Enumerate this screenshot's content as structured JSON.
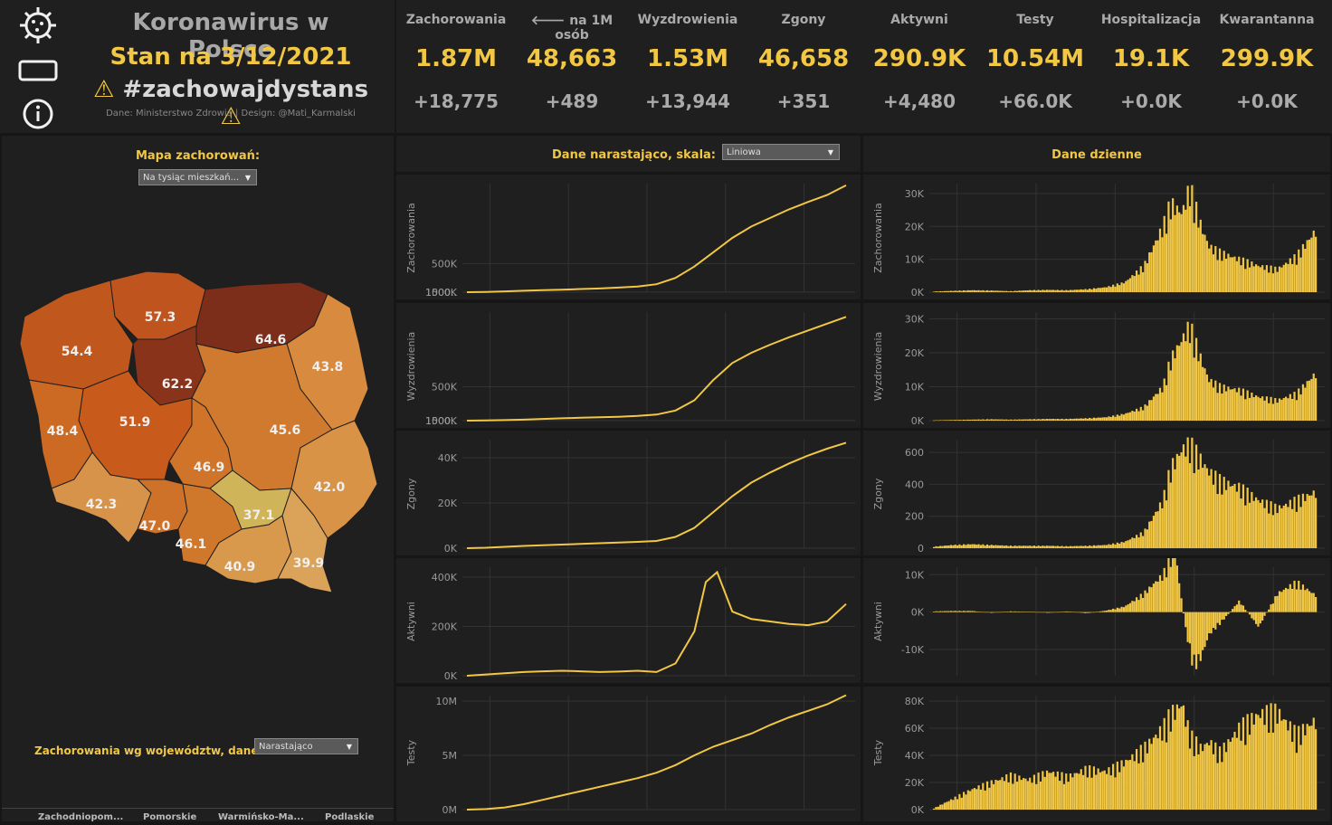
{
  "header": {
    "title": "Koronawirus w Polsce",
    "date_line": "Stan na 3/12/2021",
    "hashtag": "#zachowajdystans",
    "credits": "Dane: Ministerstwo Zdrowia  | Design: @Mati_Karmalski"
  },
  "kpis": [
    {
      "label": "Zachorowania",
      "value": "1.87M",
      "delta": "+18,775"
    },
    {
      "label": "🡐 na 1M osób",
      "value": "48,663",
      "delta": "+489"
    },
    {
      "label": "Wyzdrowienia",
      "value": "1.53M",
      "delta": "+13,944"
    },
    {
      "label": "Zgony",
      "value": "46,658",
      "delta": "+351"
    },
    {
      "label": "Aktywni",
      "value": "290.9K",
      "delta": "+4,480"
    },
    {
      "label": "Testy",
      "value": "10.54M",
      "delta": "+66.0K"
    },
    {
      "label": "Hospitalizacja",
      "value": "19.1K",
      "delta": "+0.0K"
    },
    {
      "label": "Kwarantanna",
      "value": "299.9K",
      "delta": "+0.0K"
    }
  ],
  "map_section": {
    "heading": "Mapa zachorowań:",
    "dropdown_value": "Na tysiąc mieszkań...",
    "regions": [
      {
        "value": "57.3",
        "color": "#c0541f"
      },
      {
        "value": "64.6",
        "color": "#7d2e1a"
      },
      {
        "value": "54.4",
        "color": "#c0581e"
      },
      {
        "value": "43.8",
        "color": "#d88a3e"
      },
      {
        "value": "62.2",
        "color": "#8a331b"
      },
      {
        "value": "51.9",
        "color": "#c85a1b"
      },
      {
        "value": "45.6",
        "color": "#d07a30"
      },
      {
        "value": "48.4",
        "color": "#cc6a24"
      },
      {
        "value": "46.9",
        "color": "#cf7429"
      },
      {
        "value": "42.0",
        "color": "#d99347"
      },
      {
        "value": "42.3",
        "color": "#d8934a"
      },
      {
        "value": "47.0",
        "color": "#cf7229"
      },
      {
        "value": "37.1",
        "color": "#cfb45a"
      },
      {
        "value": "46.1",
        "color": "#cf772b"
      },
      {
        "value": "40.9",
        "color": "#d9994c"
      },
      {
        "value": "39.9",
        "color": "#dba35a"
      }
    ]
  },
  "wojewodztwa_section": {
    "heading": "Zachorowania wg województw, dane:",
    "dropdown_value": "Narastająco",
    "columns": [
      "Zachodniopom...",
      "Pomorskie",
      "Warmińsko-Ma...",
      "Podlaskie"
    ]
  },
  "cumulative_section": {
    "heading": "Dane narastająco, skala:",
    "dropdown_value": "Liniowa"
  },
  "daily_section": {
    "heading": "Dane dzienne"
  },
  "chart_data": [
    {
      "type": "line",
      "panel": "cumulative",
      "ylabel": "Zachorowania",
      "yticks": [
        "0K",
        "500K",
        "1000..",
        "1500.."
      ],
      "ylim": [
        0,
        1900000
      ],
      "x": [
        0,
        5,
        10,
        15,
        20,
        25,
        30,
        35,
        40,
        45,
        50,
        55,
        60,
        65,
        70,
        75,
        80,
        85,
        90,
        95,
        100
      ],
      "values": [
        0,
        5000,
        15000,
        25000,
        35000,
        45000,
        55000,
        65000,
        80000,
        100000,
        140000,
        250000,
        450000,
        700000,
        950000,
        1150000,
        1300000,
        1450000,
        1580000,
        1700000,
        1870000
      ]
    },
    {
      "type": "line",
      "panel": "cumulative",
      "ylabel": "Wyzdrowienia",
      "yticks": [
        "0K",
        "500K",
        "1000..",
        "1500.."
      ],
      "ylim": [
        0,
        1600000
      ],
      "x": [
        0,
        5,
        10,
        15,
        20,
        25,
        30,
        35,
        40,
        45,
        50,
        55,
        60,
        65,
        70,
        75,
        80,
        85,
        90,
        95,
        100
      ],
      "values": [
        0,
        2000,
        8000,
        15000,
        25000,
        35000,
        42000,
        50000,
        58000,
        70000,
        90000,
        150000,
        300000,
        600000,
        850000,
        1000000,
        1120000,
        1230000,
        1330000,
        1430000,
        1530000
      ]
    },
    {
      "type": "line",
      "panel": "cumulative",
      "ylabel": "Zgony",
      "yticks": [
        "0K",
        "20K",
        "40K"
      ],
      "ylim": [
        0,
        48000
      ],
      "x": [
        0,
        5,
        10,
        15,
        20,
        25,
        30,
        35,
        40,
        45,
        50,
        55,
        60,
        65,
        70,
        75,
        80,
        85,
        90,
        95,
        100
      ],
      "values": [
        0,
        200,
        600,
        1000,
        1300,
        1600,
        1900,
        2200,
        2500,
        2800,
        3200,
        5000,
        9000,
        16000,
        23000,
        29000,
        33500,
        37500,
        41000,
        44000,
        46658
      ]
    },
    {
      "type": "line",
      "panel": "cumulative",
      "ylabel": "Aktywni",
      "yticks": [
        "0K",
        "200K",
        "400K"
      ],
      "ylim": [
        0,
        440000
      ],
      "x": [
        0,
        5,
        10,
        15,
        20,
        25,
        30,
        35,
        40,
        45,
        50,
        55,
        60,
        63,
        66,
        70,
        75,
        80,
        85,
        90,
        95,
        100
      ],
      "values": [
        0,
        5000,
        10000,
        15000,
        18000,
        20000,
        18000,
        15000,
        17000,
        20000,
        15000,
        50000,
        180000,
        380000,
        420000,
        260000,
        230000,
        220000,
        210000,
        205000,
        220000,
        290900
      ]
    },
    {
      "type": "line",
      "panel": "cumulative",
      "ylabel": "Testy",
      "yticks": [
        "0M",
        "5M",
        "10M"
      ],
      "ylim": [
        0,
        10500000
      ],
      "x": [
        0,
        5,
        10,
        15,
        20,
        25,
        30,
        35,
        40,
        45,
        50,
        55,
        60,
        65,
        70,
        75,
        80,
        85,
        90,
        95,
        100
      ],
      "values": [
        0,
        50000,
        200000,
        500000,
        900000,
        1300000,
        1700000,
        2100000,
        2500000,
        2900000,
        3400000,
        4100000,
        5000000,
        5800000,
        6400000,
        7000000,
        7800000,
        8500000,
        9100000,
        9700000,
        10540000
      ]
    },
    {
      "type": "bar",
      "panel": "daily",
      "ylabel": "Zachorowania",
      "yticks": [
        "0K",
        "10K",
        "20K",
        "30K"
      ],
      "ylim": [
        0,
        33000
      ],
      "x": [
        0,
        5,
        10,
        15,
        20,
        25,
        30,
        35,
        40,
        45,
        50,
        55,
        60,
        62,
        65,
        67,
        70,
        72,
        75,
        80,
        85,
        90,
        95,
        100
      ],
      "values": [
        200,
        400,
        600,
        500,
        300,
        600,
        700,
        600,
        900,
        1500,
        3000,
        8000,
        20000,
        27000,
        24000,
        32000,
        20000,
        14000,
        12000,
        10000,
        8000,
        7000,
        11000,
        18775
      ]
    },
    {
      "type": "bar",
      "panel": "daily",
      "ylabel": "Wyzdrowienia",
      "yticks": [
        "0K",
        "10K",
        "20K",
        "30K"
      ],
      "ylim": [
        0,
        32000
      ],
      "x": [
        0,
        5,
        10,
        15,
        20,
        25,
        30,
        35,
        40,
        45,
        50,
        55,
        60,
        62,
        65,
        67,
        70,
        72,
        75,
        80,
        85,
        90,
        95,
        100
      ],
      "values": [
        100,
        200,
        300,
        400,
        300,
        400,
        500,
        500,
        700,
        1000,
        2000,
        4000,
        10000,
        18000,
        24000,
        28000,
        18000,
        12000,
        10000,
        9000,
        7000,
        6000,
        8000,
        13944
      ]
    },
    {
      "type": "bar",
      "panel": "daily",
      "ylabel": "Zgony",
      "yticks": [
        "0",
        "200",
        "400",
        "600"
      ],
      "ylim": [
        0,
        680
      ],
      "x": [
        0,
        5,
        10,
        15,
        20,
        25,
        30,
        35,
        40,
        45,
        50,
        55,
        60,
        62,
        65,
        67,
        70,
        72,
        75,
        80,
        85,
        90,
        95,
        100
      ],
      "values": [
        10,
        20,
        25,
        20,
        15,
        15,
        15,
        12,
        15,
        20,
        40,
        100,
        300,
        500,
        620,
        650,
        550,
        480,
        420,
        380,
        300,
        250,
        300,
        351
      ]
    },
    {
      "type": "bar",
      "panel": "daily",
      "ylabel": "Aktywni",
      "yticks": [
        "-10K",
        "0K",
        "10K"
      ],
      "ylim": [
        -17000,
        12000
      ],
      "x": [
        0,
        5,
        10,
        15,
        20,
        25,
        30,
        35,
        40,
        45,
        50,
        55,
        60,
        63,
        66,
        68,
        70,
        72,
        75,
        80,
        85,
        90,
        95,
        100
      ],
      "values": [
        200,
        300,
        300,
        -200,
        200,
        100,
        -200,
        200,
        -300,
        400,
        1500,
        5000,
        10000,
        17000,
        -5000,
        -15000,
        -12000,
        -6000,
        -3000,
        3000,
        -4000,
        5000,
        8000,
        4480
      ]
    },
    {
      "type": "bar",
      "panel": "daily",
      "ylabel": "Testy",
      "yticks": [
        "0K",
        "20K",
        "40K",
        "60K",
        "80K"
      ],
      "ylim": [
        0,
        84000
      ],
      "x": [
        0,
        5,
        10,
        15,
        20,
        25,
        30,
        35,
        40,
        45,
        50,
        55,
        60,
        62,
        65,
        67,
        70,
        72,
        75,
        80,
        85,
        90,
        95,
        100
      ],
      "values": [
        1000,
        8000,
        15000,
        20000,
        25000,
        22000,
        28000,
        24000,
        30000,
        28000,
        35000,
        45000,
        60000,
        70000,
        78000,
        55000,
        45000,
        50000,
        42000,
        60000,
        70000,
        72000,
        55000,
        66000
      ]
    }
  ]
}
